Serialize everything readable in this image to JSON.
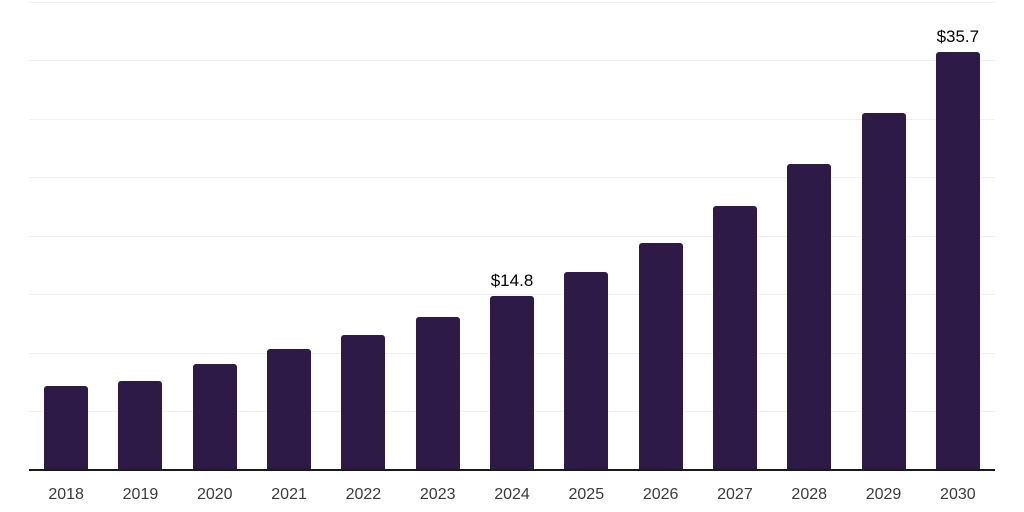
{
  "chart_data": {
    "type": "bar",
    "title": "",
    "xlabel": "",
    "ylabel": "",
    "categories": [
      "2018",
      "2019",
      "2020",
      "2021",
      "2022",
      "2023",
      "2024",
      "2025",
      "2026",
      "2027",
      "2028",
      "2029",
      "2030"
    ],
    "values": [
      7.1,
      7.6,
      9.0,
      10.3,
      11.5,
      13.0,
      14.8,
      16.9,
      19.4,
      22.5,
      26.1,
      30.5,
      35.7
    ],
    "data_labels": {
      "2024": "$14.8",
      "2030": "$35.7"
    },
    "ylim": [
      0,
      40
    ],
    "grid_step": 5,
    "grid": "horizontal-only",
    "legend_position": "none",
    "colors": {
      "bar": "#2e1a47",
      "axis": "#1a1a1a",
      "gridline": "#f0f0f0",
      "tick_label": "#3a3a3a",
      "value_label": "#000000",
      "background": "#ffffff"
    }
  }
}
